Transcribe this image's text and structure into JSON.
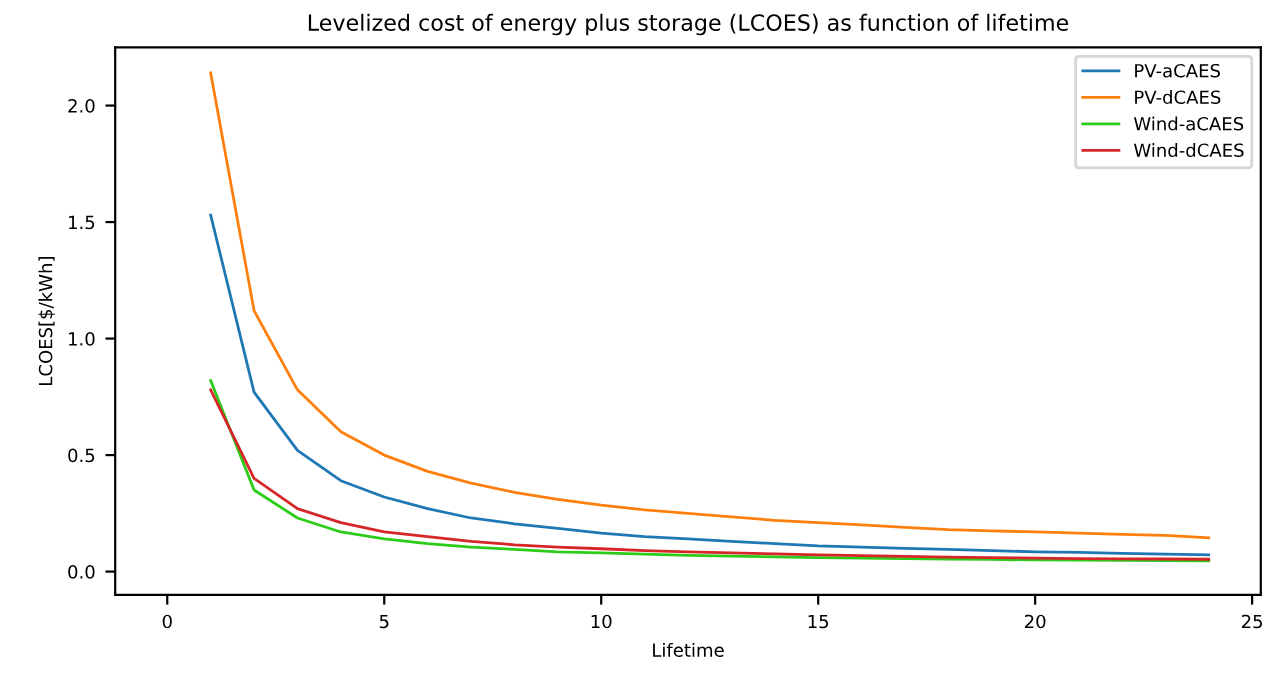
{
  "chart_data": {
    "type": "line",
    "title": "Levelized cost of energy plus storage (LCOES) as function of lifetime",
    "xlabel": "Lifetime",
    "ylabel": "LCOES[$/kWh]",
    "x": [
      1,
      2,
      3,
      4,
      5,
      6,
      7,
      8,
      9,
      10,
      11,
      12,
      13,
      14,
      15,
      16,
      17,
      18,
      19,
      20,
      21,
      22,
      23,
      24
    ],
    "series": [
      {
        "name": "PV-aCAES",
        "color": "#1f77b4",
        "values": [
          1.53,
          0.77,
          0.52,
          0.39,
          0.32,
          0.27,
          0.23,
          0.205,
          0.185,
          0.165,
          0.15,
          0.14,
          0.13,
          0.12,
          0.11,
          0.105,
          0.1,
          0.095,
          0.09,
          0.085,
          0.082,
          0.078,
          0.075,
          0.072
        ]
      },
      {
        "name": "PV-dCAES",
        "color": "#ff7f0e",
        "values": [
          2.14,
          1.12,
          0.78,
          0.6,
          0.5,
          0.43,
          0.38,
          0.34,
          0.31,
          0.285,
          0.265,
          0.25,
          0.235,
          0.22,
          0.21,
          0.2,
          0.19,
          0.18,
          0.175,
          0.17,
          0.165,
          0.16,
          0.155,
          0.145
        ]
      },
      {
        "name": "Wind-aCAES",
        "color": "#2ecc1a",
        "values": [
          0.82,
          0.35,
          0.23,
          0.17,
          0.14,
          0.12,
          0.105,
          0.095,
          0.085,
          0.08,
          0.075,
          0.07,
          0.066,
          0.063,
          0.06,
          0.058,
          0.056,
          0.054,
          0.052,
          0.05,
          0.049,
          0.048,
          0.047,
          0.046
        ]
      },
      {
        "name": "Wind-dCAES",
        "color": "#d62728",
        "values": [
          0.78,
          0.4,
          0.27,
          0.21,
          0.17,
          0.15,
          0.13,
          0.115,
          0.105,
          0.098,
          0.09,
          0.085,
          0.08,
          0.076,
          0.072,
          0.068,
          0.065,
          0.062,
          0.06,
          0.058,
          0.056,
          0.055,
          0.054,
          0.053
        ]
      }
    ],
    "xlim": [
      -1.2,
      25.2
    ],
    "ylim": [
      -0.1,
      2.25
    ],
    "xticks": [
      0,
      5,
      10,
      15,
      20,
      25
    ],
    "yticks": [
      {
        "value": 0,
        "label": "0.0"
      },
      0.5,
      {
        "value": 1,
        "label": "1.0"
      },
      1.5,
      {
        "value": 2,
        "label": "2.0"
      }
    ],
    "legend": "top right",
    "grid": false
  }
}
